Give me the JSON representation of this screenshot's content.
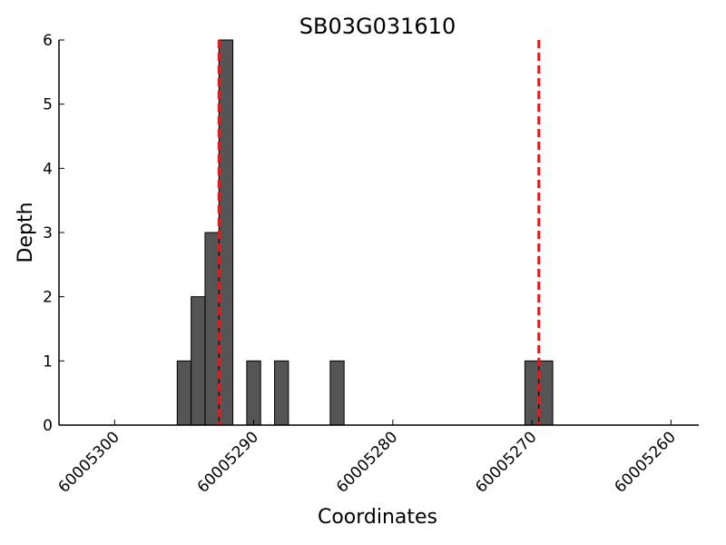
{
  "chart_data": {
    "type": "bar",
    "title": "SB03G031610",
    "xlabel": "Coordinates",
    "ylabel": "Depth",
    "x_reversed": true,
    "xlim": [
      60005304,
      60005258
    ],
    "ylim": [
      0,
      6
    ],
    "xticks": [
      60005300,
      60005290,
      60005280,
      60005270,
      60005260
    ],
    "xtick_labels": [
      "60005300",
      "60005290",
      "60005280",
      "60005270",
      "60005260"
    ],
    "yticks": [
      0,
      1,
      2,
      3,
      4,
      5,
      6
    ],
    "ytick_labels": [
      "0",
      "1",
      "2",
      "3",
      "4",
      "5",
      "6"
    ],
    "bar_color": "#555555",
    "bar_edge_color": "#000000",
    "bin_width": 1,
    "bars": [
      {
        "x": 60005295,
        "value": 1
      },
      {
        "x": 60005294,
        "value": 2
      },
      {
        "x": 60005293,
        "value": 3
      },
      {
        "x": 60005292,
        "value": 6
      },
      {
        "x": 60005290,
        "value": 1
      },
      {
        "x": 60005288,
        "value": 1
      },
      {
        "x": 60005284,
        "value": 1
      },
      {
        "x": 60005270,
        "value": 1
      },
      {
        "x": 60005269,
        "value": 1
      }
    ],
    "vlines": [
      {
        "x": 60005292.5,
        "color": "#e31a1c",
        "style": "dashed"
      },
      {
        "x": 60005269.5,
        "color": "#e31a1c",
        "style": "dashed"
      }
    ],
    "grid": false,
    "legend": "none"
  }
}
